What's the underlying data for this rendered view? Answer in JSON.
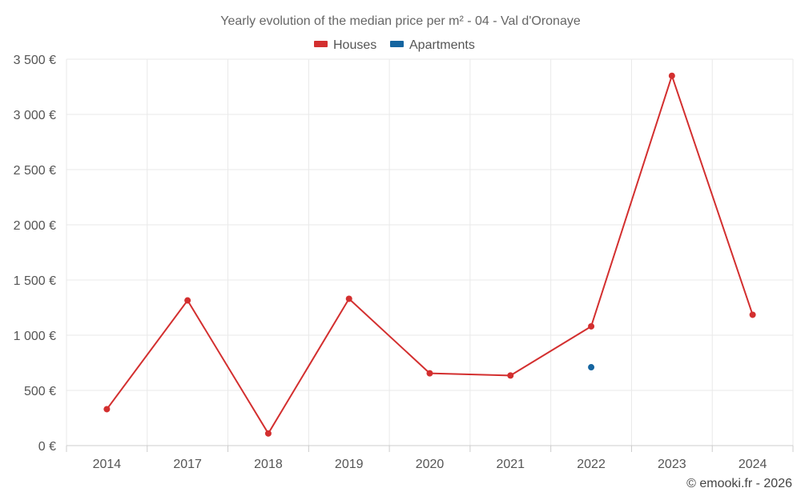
{
  "chart_data": {
    "type": "line",
    "title": "Yearly evolution of the median price per m² - 04 - Val d'Oronaye",
    "categories": [
      "2014",
      "2017",
      "2018",
      "2019",
      "2020",
      "2021",
      "2022",
      "2023",
      "2024"
    ],
    "series": [
      {
        "name": "Houses",
        "color": "#d32f2f",
        "values": [
          330,
          1315,
          110,
          1330,
          655,
          635,
          1080,
          3350,
          1185
        ]
      },
      {
        "name": "Apartments",
        "color": "#1565a0",
        "values": [
          null,
          null,
          null,
          null,
          null,
          null,
          710,
          null,
          null
        ]
      }
    ],
    "ylim": [
      0,
      3500
    ],
    "yticks": [
      0,
      500,
      1000,
      1500,
      2000,
      2500,
      3000,
      3500
    ],
    "ytick_labels": [
      "0 €",
      "500 €",
      "1 000 €",
      "1 500 €",
      "2 000 €",
      "2 500 €",
      "3 000 €",
      "3 500 €"
    ],
    "grid": true,
    "legend_position": "top"
  },
  "credit": "© emooki.fr - 2026"
}
